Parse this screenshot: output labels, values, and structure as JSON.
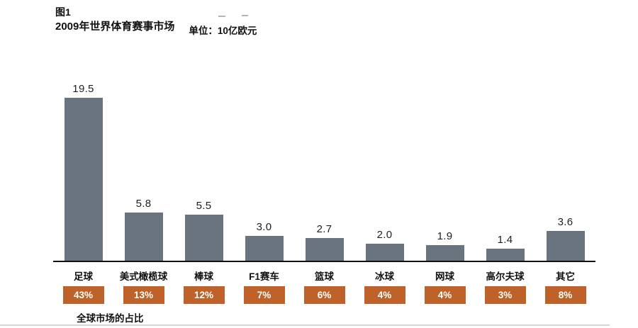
{
  "header": {
    "figure_label": "图1",
    "title": "2009年世界体育赛事市场",
    "unit": "单位：10亿欧元"
  },
  "footnote": "全球市场的占比",
  "colors": {
    "bar": "#6a747e",
    "badge": "#bf6229",
    "axis": "#111111",
    "text": "#111111"
  },
  "chart_data": {
    "type": "bar",
    "title": "2009年世界体育赛事市场",
    "subtitle": "图1",
    "unit": "10亿欧元",
    "categories": [
      "足球",
      "美式橄榄球",
      "棒球",
      "F1赛车",
      "篮球",
      "冰球",
      "网球",
      "高尔夫球",
      "其它"
    ],
    "values": [
      19.5,
      5.8,
      5.5,
      3.0,
      2.7,
      2.0,
      1.9,
      1.4,
      3.6
    ],
    "value_labels": [
      "19.5",
      "5.8",
      "5.5",
      "3.0",
      "2.7",
      "2.0",
      "1.9",
      "1.4",
      "3.6"
    ],
    "percentages": [
      "43%",
      "13%",
      "12%",
      "7%",
      "6%",
      "4%",
      "4%",
      "3%",
      "8%"
    ],
    "footnote": "全球市场的占比",
    "xlabel": "",
    "ylabel": "",
    "ylim": [
      0,
      20
    ],
    "grid": false,
    "legend": false
  }
}
